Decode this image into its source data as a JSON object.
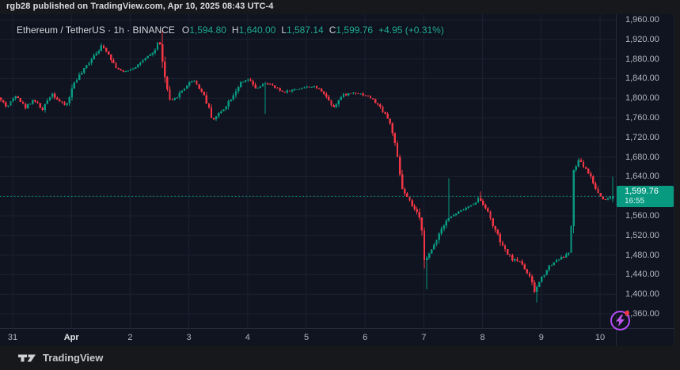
{
  "attribution": {
    "text": "rgb28 published on TradingView.com, Apr 10, 2025 08:43 UTC-4"
  },
  "header": {
    "title": "Ethereum / TetherUS · 1h · BINANCE",
    "symbol": "Ethereum / TetherUS",
    "interval": "1h",
    "exchange": "BINANCE",
    "ohlc": [
      {
        "label": "O",
        "value": "1,594.80"
      },
      {
        "label": "H",
        "value": "1,640.00"
      },
      {
        "label": "L",
        "value": "1,587.14"
      },
      {
        "label": "C",
        "value": "1,599.76"
      }
    ],
    "change": "+4.95 (+0.31%)"
  },
  "price_scale": {
    "labels": [
      "1,960.00",
      "1,920.00",
      "1,880.00",
      "1,840.00",
      "1,800.00",
      "1,760.00",
      "1,720.00",
      "1,680.00",
      "1,640.00",
      "1,560.00",
      "1,520.00",
      "1,480.00",
      "1,440.00",
      "1,400.00",
      "1,360.00"
    ]
  },
  "time_scale": {
    "ticks": [
      {
        "label": "31",
        "d": 0
      },
      {
        "label": "Apr",
        "d": 1,
        "bold": true
      },
      {
        "label": "2",
        "d": 2
      },
      {
        "label": "3",
        "d": 3
      },
      {
        "label": "4",
        "d": 4
      },
      {
        "label": "5",
        "d": 5
      },
      {
        "label": "6",
        "d": 6
      },
      {
        "label": "7",
        "d": 7
      },
      {
        "label": "8",
        "d": 8
      },
      {
        "label": "9",
        "d": 9
      },
      {
        "label": "10",
        "d": 10
      }
    ]
  },
  "price_label": {
    "price": "1,599.76",
    "countdown": "16:55"
  },
  "footer": {
    "logo_text": "TradingView"
  },
  "colors": {
    "up": "#089981",
    "down": "#f23645",
    "badge_bg": "#089981",
    "grid": "#1e2434",
    "chart_bg": "#0f1420",
    "page_bg": "#17181c",
    "axis_text": "#b2b5be",
    "accent_purple": "#b24bf3",
    "notification_red": "#f23645"
  },
  "chart_data": {
    "type": "candlestick",
    "title": "Ethereum / TetherUS",
    "exchange": "BINANCE",
    "interval": "1h",
    "ylim": [
      1360,
      1960
    ],
    "y_step": 40,
    "x_days": [
      "31",
      "Apr",
      "2",
      "3",
      "4",
      "5",
      "6",
      "7",
      "8",
      "9",
      "10"
    ],
    "grid": true,
    "candles_per_day": 24,
    "d_start": -0.2,
    "d_end": 10.22,
    "seed": 42,
    "last_bar": {
      "open": 1594.8,
      "high": 1640.0,
      "low": 1587.14,
      "close": 1599.76,
      "change": 4.95,
      "change_pct": 0.31
    },
    "anchors": [
      [
        -0.21,
        1802
      ],
      [
        -0.05,
        1782
      ],
      [
        0.1,
        1808
      ],
      [
        0.25,
        1780
      ],
      [
        0.4,
        1798
      ],
      [
        0.55,
        1775
      ],
      [
        0.7,
        1812
      ],
      [
        0.82,
        1795
      ],
      [
        0.95,
        1784
      ],
      [
        1.1,
        1835
      ],
      [
        1.25,
        1857
      ],
      [
        1.4,
        1885
      ],
      [
        1.55,
        1905
      ],
      [
        1.65,
        1896
      ],
      [
        1.78,
        1866
      ],
      [
        1.92,
        1852
      ],
      [
        2.1,
        1862
      ],
      [
        2.3,
        1880
      ],
      [
        2.46,
        1896
      ],
      [
        2.54,
        1922
      ],
      [
        2.6,
        1860
      ],
      [
        2.72,
        1790
      ],
      [
        2.86,
        1806
      ],
      [
        3.0,
        1826
      ],
      [
        3.12,
        1838
      ],
      [
        3.3,
        1806
      ],
      [
        3.45,
        1756
      ],
      [
        3.6,
        1774
      ],
      [
        3.76,
        1800
      ],
      [
        3.9,
        1828
      ],
      [
        4.05,
        1838
      ],
      [
        4.2,
        1818
      ],
      [
        4.35,
        1832
      ],
      [
        4.5,
        1822
      ],
      [
        4.65,
        1812
      ],
      [
        4.85,
        1818
      ],
      [
        5.0,
        1822
      ],
      [
        5.15,
        1824
      ],
      [
        5.32,
        1814
      ],
      [
        5.5,
        1782
      ],
      [
        5.66,
        1806
      ],
      [
        5.85,
        1812
      ],
      [
        6.0,
        1808
      ],
      [
        6.12,
        1802
      ],
      [
        6.25,
        1788
      ],
      [
        6.4,
        1766
      ],
      [
        6.5,
        1738
      ],
      [
        6.58,
        1680
      ],
      [
        6.68,
        1612
      ],
      [
        6.8,
        1588
      ],
      [
        6.92,
        1566
      ],
      [
        7.0,
        1545
      ],
      [
        7.06,
        1468
      ],
      [
        7.16,
        1486
      ],
      [
        7.28,
        1520
      ],
      [
        7.42,
        1552
      ],
      [
        7.56,
        1562
      ],
      [
        7.7,
        1572
      ],
      [
        7.86,
        1582
      ],
      [
        7.98,
        1596
      ],
      [
        8.1,
        1576
      ],
      [
        8.25,
        1532
      ],
      [
        8.4,
        1492
      ],
      [
        8.55,
        1472
      ],
      [
        8.7,
        1466
      ],
      [
        8.85,
        1432
      ],
      [
        8.93,
        1404
      ],
      [
        9.0,
        1424
      ],
      [
        9.15,
        1455
      ],
      [
        9.3,
        1470
      ],
      [
        9.45,
        1478
      ],
      [
        9.53,
        1488
      ],
      [
        9.59,
        1636
      ],
      [
        9.66,
        1676
      ],
      [
        9.74,
        1664
      ],
      [
        9.82,
        1652
      ],
      [
        9.9,
        1636
      ],
      [
        9.97,
        1614
      ],
      [
        10.05,
        1600
      ],
      [
        10.13,
        1592
      ],
      [
        10.22,
        1600
      ]
    ],
    "wick_events": [
      {
        "d": 2.56,
        "side": "high",
        "price": 1939
      },
      {
        "d": 4.32,
        "side": "low",
        "price": 1768
      },
      {
        "d": 7.06,
        "side": "low",
        "price": 1410
      },
      {
        "d": 7.42,
        "side": "high",
        "price": 1637
      },
      {
        "d": 7.98,
        "side": "high",
        "price": 1610
      },
      {
        "d": 8.93,
        "side": "low",
        "price": 1383
      },
      {
        "d": 10.22,
        "side": "high",
        "price": 1640
      }
    ]
  }
}
